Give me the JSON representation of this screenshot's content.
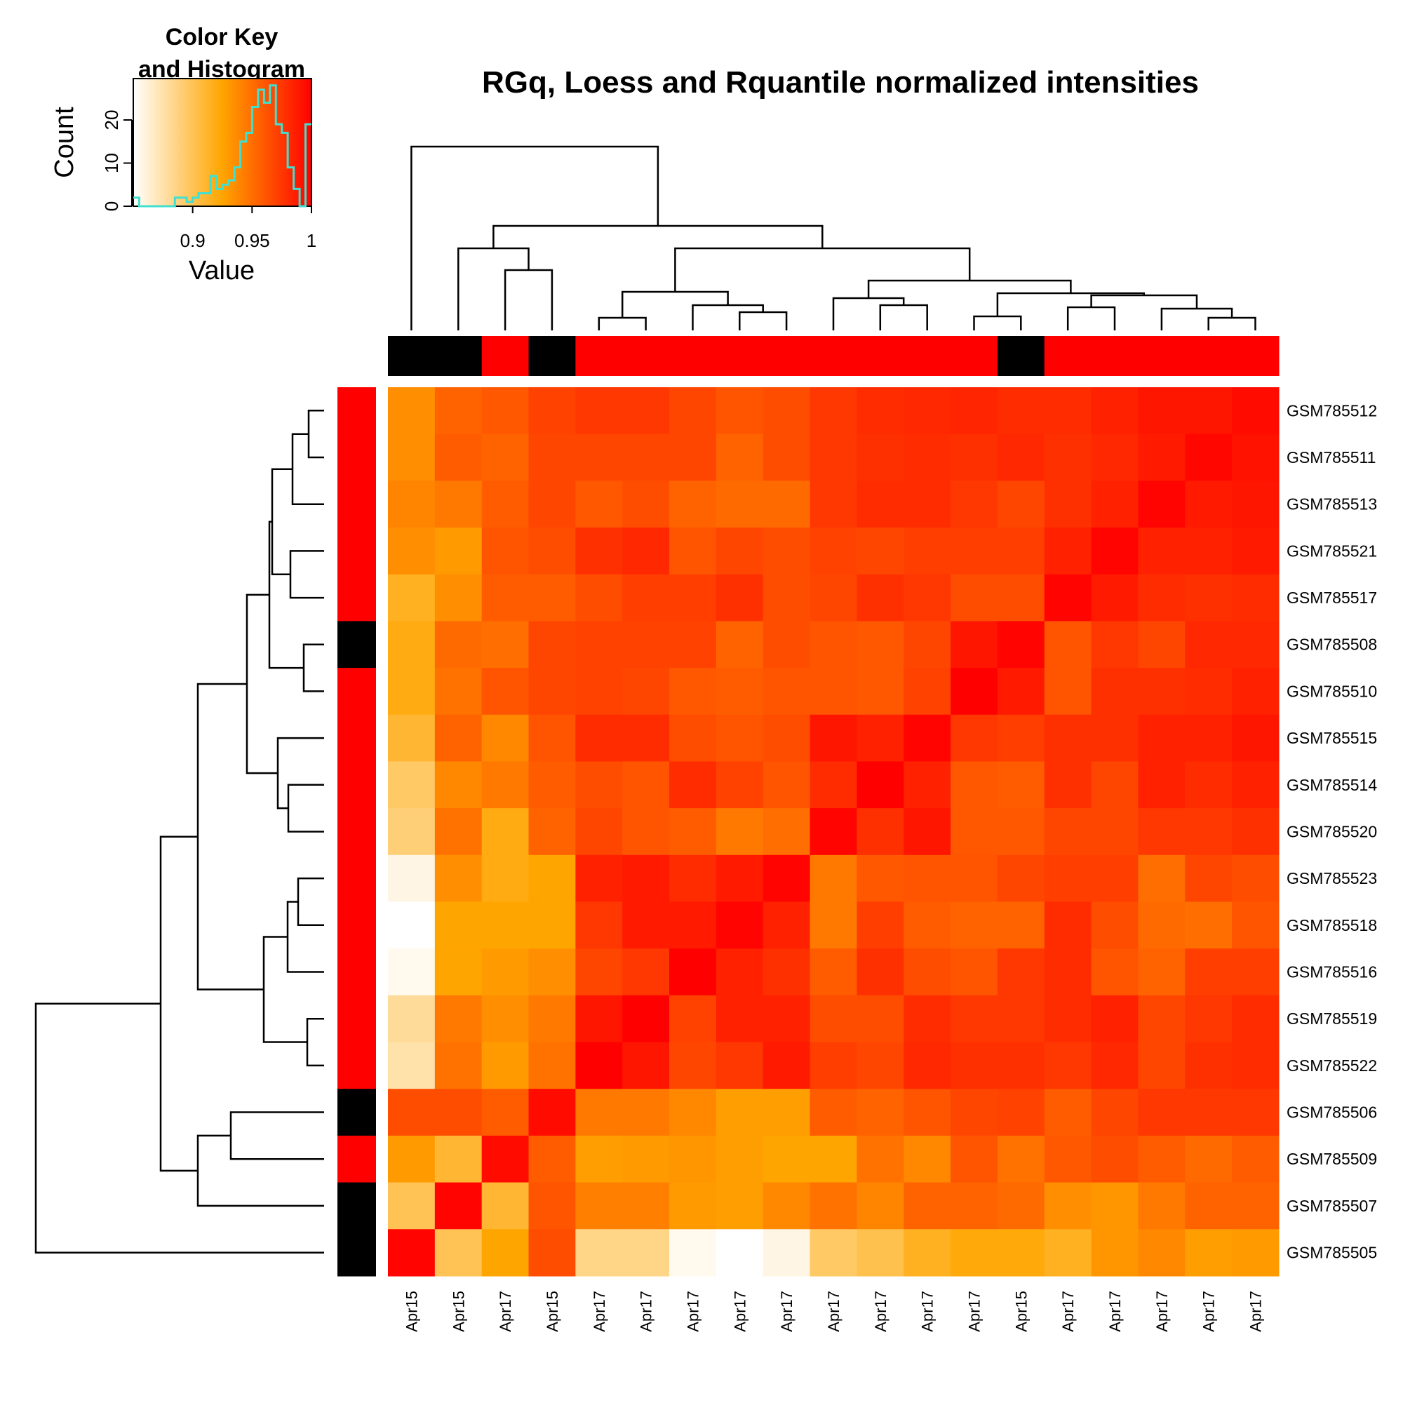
{
  "chart_data": {
    "type": "heatmap",
    "title": "RGq, Loess and Rquantile normalized intensities",
    "color_key": {
      "title_line1": "Color Key",
      "title_line2": "and Histogram",
      "xlabel": "Value",
      "ylabel": "Count",
      "x_ticks": [
        "0.9",
        "0.95",
        "1"
      ],
      "x_tick_values": [
        0.9,
        0.95,
        1.0
      ],
      "y_ticks": [
        "0",
        "10",
        "20"
      ],
      "y_tick_values": [
        0,
        10,
        20
      ],
      "value_range": [
        0.85,
        1.0
      ],
      "count_max": 29,
      "histogram_color": "#40E0D0",
      "histogram_counts": [
        2,
        0,
        0,
        0,
        0,
        0,
        0,
        2,
        2,
        1,
        2,
        3,
        3,
        7,
        4,
        5,
        6,
        9,
        15,
        17,
        23,
        27,
        24,
        28,
        19,
        17,
        9,
        4,
        0,
        19
      ],
      "colors": [
        "#FFFFFF",
        "#FFA500",
        "#FF0000"
      ]
    },
    "rows": [
      "GSM785512",
      "GSM785511",
      "GSM785513",
      "GSM785521",
      "GSM785517",
      "GSM785508",
      "GSM785510",
      "GSM785515",
      "GSM785514",
      "GSM785520",
      "GSM785523",
      "GSM785518",
      "GSM785516",
      "GSM785519",
      "GSM785522",
      "GSM785506",
      "GSM785509",
      "GSM785507",
      "GSM785505"
    ],
    "columns": [
      "Apr15",
      "Apr15",
      "Apr17",
      "Apr15",
      "Apr17",
      "Apr17",
      "Apr17",
      "Apr17",
      "Apr17",
      "Apr17",
      "Apr17",
      "Apr17",
      "Apr17",
      "Apr15",
      "Apr17",
      "Apr17",
      "Apr17",
      "Apr17",
      "Apr17"
    ],
    "column_side_colors": [
      "#000000",
      "#000000",
      "#FF0000",
      "#000000",
      "#FF0000",
      "#FF0000",
      "#FF0000",
      "#FF0000",
      "#FF0000",
      "#FF0000",
      "#FF0000",
      "#FF0000",
      "#FF0000",
      "#000000",
      "#FF0000",
      "#FF0000",
      "#FF0000",
      "#FF0000",
      "#FF0000"
    ],
    "row_side_colors": [
      "#FF0000",
      "#FF0000",
      "#FF0000",
      "#FF0000",
      "#FF0000",
      "#000000",
      "#FF0000",
      "#FF0000",
      "#FF0000",
      "#FF0000",
      "#FF0000",
      "#FF0000",
      "#FF0000",
      "#FF0000",
      "#FF0000",
      "#000000",
      "#FF0000",
      "#000000",
      "#000000"
    ],
    "values": [
      [
        0.935,
        0.955,
        0.96,
        0.97,
        0.975,
        0.975,
        0.968,
        0.962,
        0.965,
        0.975,
        0.98,
        0.982,
        0.983,
        0.98,
        0.98,
        0.985,
        0.99,
        0.99,
        0.995
      ],
      [
        0.935,
        0.958,
        0.955,
        0.968,
        0.968,
        0.968,
        0.968,
        0.955,
        0.965,
        0.975,
        0.978,
        0.98,
        0.978,
        0.982,
        0.978,
        0.982,
        0.988,
        0.997,
        0.992
      ],
      [
        0.94,
        0.945,
        0.958,
        0.968,
        0.96,
        0.965,
        0.955,
        0.952,
        0.952,
        0.975,
        0.98,
        0.98,
        0.975,
        0.968,
        0.978,
        0.985,
        0.998,
        0.988,
        0.99
      ],
      [
        0.935,
        0.93,
        0.962,
        0.965,
        0.978,
        0.982,
        0.962,
        0.968,
        0.965,
        0.97,
        0.968,
        0.972,
        0.972,
        0.972,
        0.985,
        0.998,
        0.985,
        0.985,
        0.988
      ],
      [
        0.915,
        0.935,
        0.958,
        0.958,
        0.965,
        0.972,
        0.972,
        0.978,
        0.965,
        0.968,
        0.978,
        0.975,
        0.965,
        0.965,
        0.998,
        0.988,
        0.98,
        0.978,
        0.98
      ],
      [
        0.92,
        0.952,
        0.95,
        0.968,
        0.97,
        0.97,
        0.97,
        0.955,
        0.965,
        0.962,
        0.96,
        0.968,
        0.99,
        0.998,
        0.962,
        0.975,
        0.968,
        0.982,
        0.982
      ],
      [
        0.92,
        0.948,
        0.962,
        0.968,
        0.97,
        0.968,
        0.96,
        0.958,
        0.962,
        0.962,
        0.96,
        0.97,
        1.0,
        0.988,
        0.962,
        0.978,
        0.978,
        0.98,
        0.985
      ],
      [
        0.91,
        0.955,
        0.938,
        0.962,
        0.98,
        0.98,
        0.965,
        0.962,
        0.965,
        0.99,
        0.985,
        0.998,
        0.975,
        0.972,
        0.978,
        0.978,
        0.985,
        0.985,
        0.99
      ],
      [
        0.895,
        0.938,
        0.945,
        0.958,
        0.965,
        0.962,
        0.98,
        0.97,
        0.962,
        0.98,
        1.0,
        0.985,
        0.96,
        0.958,
        0.978,
        0.968,
        0.985,
        0.98,
        0.985
      ],
      [
        0.89,
        0.948,
        0.92,
        0.955,
        0.968,
        0.962,
        0.958,
        0.945,
        0.95,
        0.998,
        0.978,
        0.99,
        0.96,
        0.96,
        0.968,
        0.968,
        0.975,
        0.975,
        0.978
      ],
      [
        0.858,
        0.935,
        0.92,
        0.925,
        0.985,
        0.988,
        0.98,
        0.988,
        0.998,
        0.945,
        0.96,
        0.962,
        0.962,
        0.968,
        0.972,
        0.972,
        0.95,
        0.968,
        0.965
      ],
      [
        0.85,
        0.925,
        0.925,
        0.925,
        0.975,
        0.988,
        0.988,
        0.998,
        0.985,
        0.945,
        0.972,
        0.958,
        0.955,
        0.955,
        0.98,
        0.965,
        0.952,
        0.95,
        0.962
      ],
      [
        0.855,
        0.925,
        0.93,
        0.935,
        0.968,
        0.975,
        1.0,
        0.985,
        0.978,
        0.958,
        0.978,
        0.965,
        0.962,
        0.975,
        0.98,
        0.962,
        0.955,
        0.972,
        0.972
      ],
      [
        0.88,
        0.945,
        0.935,
        0.945,
        0.99,
        1.0,
        0.97,
        0.985,
        0.985,
        0.965,
        0.965,
        0.98,
        0.975,
        0.975,
        0.98,
        0.985,
        0.968,
        0.975,
        0.98
      ],
      [
        0.875,
        0.948,
        0.93,
        0.948,
        1.0,
        0.99,
        0.968,
        0.975,
        0.988,
        0.972,
        0.968,
        0.982,
        0.978,
        0.978,
        0.975,
        0.982,
        0.968,
        0.978,
        0.98
      ],
      [
        0.965,
        0.965,
        0.958,
        0.995,
        0.945,
        0.945,
        0.938,
        0.928,
        0.928,
        0.958,
        0.955,
        0.962,
        0.968,
        0.97,
        0.958,
        0.968,
        0.975,
        0.975,
        0.975
      ],
      [
        0.93,
        0.91,
        0.995,
        0.958,
        0.928,
        0.93,
        0.932,
        0.928,
        0.925,
        0.925,
        0.948,
        0.938,
        0.962,
        0.948,
        0.96,
        0.965,
        0.958,
        0.952,
        0.958
      ],
      [
        0.9,
        0.998,
        0.91,
        0.962,
        0.942,
        0.942,
        0.93,
        0.928,
        0.938,
        0.948,
        0.94,
        0.955,
        0.955,
        0.952,
        0.935,
        0.932,
        0.945,
        0.955,
        0.955
      ],
      [
        0.998,
        0.9,
        0.925,
        0.965,
        0.885,
        0.885,
        0.855,
        0.85,
        0.858,
        0.895,
        0.902,
        0.915,
        0.922,
        0.922,
        0.915,
        0.932,
        0.938,
        0.928,
        0.93
      ]
    ]
  }
}
